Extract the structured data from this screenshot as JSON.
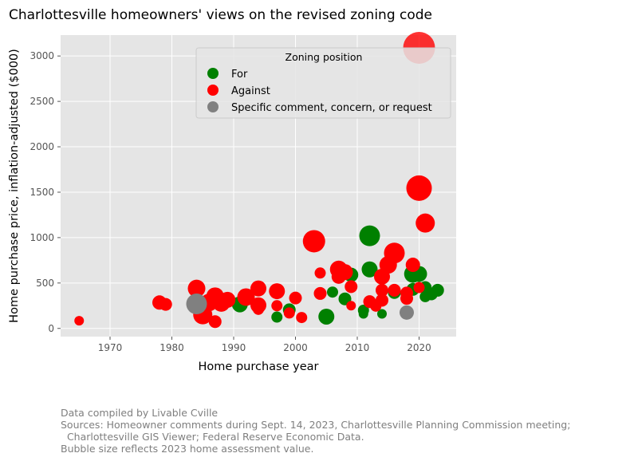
{
  "chart_data": {
    "type": "scatter",
    "title": "Charlottesville homeowners' views on the revised zoning code",
    "xlabel": "Home purchase year",
    "ylabel": "Home purchase price, inflation-adjusted ($000)",
    "xlim": [
      1962,
      2026
    ],
    "ylim": [
      -90,
      3230
    ],
    "xticks": [
      1970,
      1980,
      1990,
      2000,
      2010,
      2020
    ],
    "yticks": [
      0,
      500,
      1000,
      1500,
      2000,
      2500,
      3000
    ],
    "grid": true,
    "legend": {
      "title": "Zoning position",
      "placement": "top-right"
    },
    "series": [
      {
        "name": "For",
        "color": "#008000",
        "points": [
          {
            "x": 1984,
            "y": 285,
            "s": 7
          },
          {
            "x": 1991,
            "y": 265,
            "s": 10
          },
          {
            "x": 1997,
            "y": 125,
            "s": 7
          },
          {
            "x": 1999,
            "y": 205,
            "s": 8
          },
          {
            "x": 2005,
            "y": 130,
            "s": 10
          },
          {
            "x": 2006,
            "y": 400,
            "s": 7
          },
          {
            "x": 2008,
            "y": 325,
            "s": 8
          },
          {
            "x": 2009,
            "y": 590,
            "s": 9
          },
          {
            "x": 2011,
            "y": 160,
            "s": 6
          },
          {
            "x": 2011,
            "y": 200,
            "s": 7
          },
          {
            "x": 2012,
            "y": 1020,
            "s": 13
          },
          {
            "x": 2012,
            "y": 650,
            "s": 10
          },
          {
            "x": 2014,
            "y": 160,
            "s": 6
          },
          {
            "x": 2016,
            "y": 395,
            "s": 8
          },
          {
            "x": 2019,
            "y": 600,
            "s": 11
          },
          {
            "x": 2020,
            "y": 600,
            "s": 10
          },
          {
            "x": 2019,
            "y": 430,
            "s": 8
          },
          {
            "x": 2021,
            "y": 450,
            "s": 8
          },
          {
            "x": 2021,
            "y": 350,
            "s": 7
          },
          {
            "x": 2022,
            "y": 380,
            "s": 8
          },
          {
            "x": 2023,
            "y": 420,
            "s": 8
          }
        ]
      },
      {
        "name": "Against",
        "color": "#ff0000",
        "points": [
          {
            "x": 1965,
            "y": 85,
            "s": 6
          },
          {
            "x": 1978,
            "y": 285,
            "s": 9
          },
          {
            "x": 1979,
            "y": 265,
            "s": 8
          },
          {
            "x": 1984,
            "y": 440,
            "s": 11
          },
          {
            "x": 1985,
            "y": 150,
            "s": 12
          },
          {
            "x": 1986,
            "y": 285,
            "s": 11
          },
          {
            "x": 1987,
            "y": 355,
            "s": 11
          },
          {
            "x": 1987,
            "y": 75,
            "s": 8
          },
          {
            "x": 1988,
            "y": 280,
            "s": 11
          },
          {
            "x": 1989,
            "y": 315,
            "s": 10
          },
          {
            "x": 1992,
            "y": 345,
            "s": 11
          },
          {
            "x": 1994,
            "y": 440,
            "s": 10
          },
          {
            "x": 1994,
            "y": 255,
            "s": 10
          },
          {
            "x": 1994,
            "y": 210,
            "s": 7
          },
          {
            "x": 1997,
            "y": 410,
            "s": 10
          },
          {
            "x": 1997,
            "y": 250,
            "s": 7
          },
          {
            "x": 1999,
            "y": 170,
            "s": 7
          },
          {
            "x": 2000,
            "y": 335,
            "s": 8
          },
          {
            "x": 2001,
            "y": 120,
            "s": 7
          },
          {
            "x": 2003,
            "y": 960,
            "s": 14
          },
          {
            "x": 2004,
            "y": 610,
            "s": 7
          },
          {
            "x": 2004,
            "y": 385,
            "s": 8
          },
          {
            "x": 2007,
            "y": 650,
            "s": 11
          },
          {
            "x": 2007,
            "y": 570,
            "s": 9
          },
          {
            "x": 2008,
            "y": 620,
            "s": 10
          },
          {
            "x": 2009,
            "y": 460,
            "s": 8
          },
          {
            "x": 2009,
            "y": 250,
            "s": 6
          },
          {
            "x": 2012,
            "y": 295,
            "s": 8
          },
          {
            "x": 2013,
            "y": 245,
            "s": 7
          },
          {
            "x": 2014,
            "y": 310,
            "s": 8
          },
          {
            "x": 2014,
            "y": 420,
            "s": 8
          },
          {
            "x": 2014,
            "y": 570,
            "s": 10
          },
          {
            "x": 2015,
            "y": 700,
            "s": 11
          },
          {
            "x": 2016,
            "y": 830,
            "s": 13
          },
          {
            "x": 2016,
            "y": 420,
            "s": 8
          },
          {
            "x": 2018,
            "y": 330,
            "s": 8
          },
          {
            "x": 2018,
            "y": 390,
            "s": 8
          },
          {
            "x": 2019,
            "y": 700,
            "s": 9
          },
          {
            "x": 2020,
            "y": 3090,
            "s": 20
          },
          {
            "x": 2020,
            "y": 1545,
            "s": 16
          },
          {
            "x": 2020,
            "y": 450,
            "s": 7
          },
          {
            "x": 2021,
            "y": 1160,
            "s": 12
          }
        ]
      },
      {
        "name": "Specific comment, concern, or request",
        "color": "#808080",
        "points": [
          {
            "x": 1984,
            "y": 270,
            "s": 13
          },
          {
            "x": 2018,
            "y": 175,
            "s": 9
          }
        ]
      }
    ]
  },
  "footnote": {
    "line1": "Data compiled by Livable Cville",
    "line2": "Sources: Homeowner comments during Sept. 14, 2023, Charlottesville Planning Commission meeting;",
    "line3": "  Charlottesville GIS Viewer; Federal Reserve Economic Data.",
    "line4": "Bubble size reflects 2023 home assessment value."
  }
}
